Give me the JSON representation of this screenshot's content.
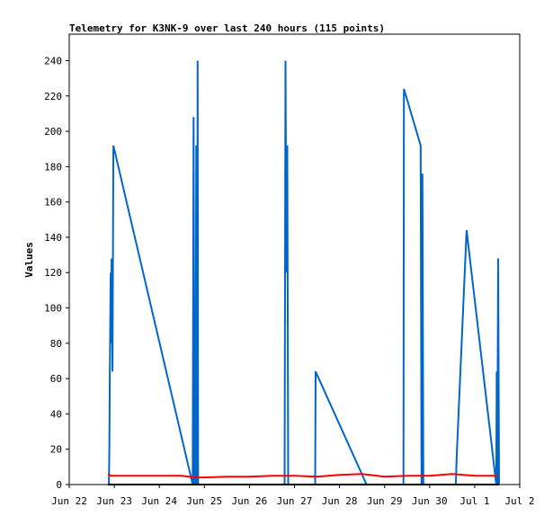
{
  "chart_data": {
    "type": "line",
    "title": "Telemetry for K3NK-9 over last 240 hours (115 points)",
    "ylabel": "Values",
    "xlabel": "",
    "ylim": [
      0,
      255
    ],
    "y_ticks": [
      0,
      20,
      40,
      60,
      80,
      100,
      120,
      140,
      160,
      180,
      200,
      220,
      240
    ],
    "x_ticks": [
      {
        "label": "Jun 22",
        "day": 0
      },
      {
        "label": "Jun 23",
        "day": 1
      },
      {
        "label": "Jun 24",
        "day": 2
      },
      {
        "label": "Jun 25",
        "day": 3
      },
      {
        "label": "Jun 26",
        "day": 4
      },
      {
        "label": "Jun 27",
        "day": 5
      },
      {
        "label": "Jun 28",
        "day": 6
      },
      {
        "label": "Jun 29",
        "day": 7
      },
      {
        "label": "Jun 30",
        "day": 8
      },
      {
        "label": "Jul 1",
        "day": 9
      },
      {
        "label": "Jul 2",
        "day": 10
      }
    ],
    "xlim": [
      0,
      10
    ],
    "grid": false,
    "legend": "none",
    "series": [
      {
        "color": "#0066cc",
        "points": [
          [
            0.88,
            0
          ],
          [
            0.89,
            20
          ],
          [
            0.9,
            60
          ],
          [
            0.92,
            120
          ],
          [
            0.93,
            80
          ],
          [
            0.94,
            128
          ],
          [
            0.96,
            64
          ],
          [
            0.98,
            192
          ],
          [
            2.74,
            0
          ],
          [
            2.76,
            208
          ],
          [
            2.78,
            0
          ],
          [
            2.8,
            0
          ],
          [
            2.82,
            192
          ],
          [
            2.84,
            0
          ],
          [
            2.85,
            240
          ],
          [
            2.86,
            0
          ],
          [
            4.78,
            0
          ],
          [
            4.8,
            240
          ],
          [
            4.82,
            120
          ],
          [
            4.84,
            192
          ],
          [
            4.86,
            0
          ],
          [
            5.46,
            0
          ],
          [
            5.47,
            64
          ],
          [
            6.6,
            0
          ],
          [
            7.42,
            0
          ],
          [
            7.43,
            224
          ],
          [
            7.8,
            192
          ],
          [
            7.82,
            0
          ],
          [
            7.84,
            176
          ],
          [
            7.86,
            0
          ],
          [
            8.58,
            0
          ],
          [
            8.6,
            16
          ],
          [
            8.82,
            144
          ],
          [
            9.48,
            0
          ],
          [
            9.49,
            64
          ],
          [
            9.5,
            0
          ],
          [
            9.52,
            128
          ],
          [
            9.54,
            0
          ]
        ]
      },
      {
        "color": "#ff0000",
        "points": [
          [
            0.86,
            6
          ],
          [
            0.92,
            5
          ],
          [
            1.5,
            5
          ],
          [
            2.5,
            5
          ],
          [
            2.8,
            4
          ],
          [
            3.0,
            4
          ],
          [
            3.5,
            4.5
          ],
          [
            4.0,
            4.5
          ],
          [
            4.5,
            5
          ],
          [
            5.0,
            5
          ],
          [
            5.5,
            4.5
          ],
          [
            6.0,
            5.5
          ],
          [
            6.5,
            6
          ],
          [
            7.0,
            4.5
          ],
          [
            7.5,
            5
          ],
          [
            8.0,
            5
          ],
          [
            8.5,
            6
          ],
          [
            9.0,
            5
          ],
          [
            9.5,
            5
          ]
        ]
      },
      {
        "color": "#000000",
        "points": [
          [
            0.86,
            0
          ],
          [
            9.54,
            0
          ]
        ]
      }
    ]
  }
}
